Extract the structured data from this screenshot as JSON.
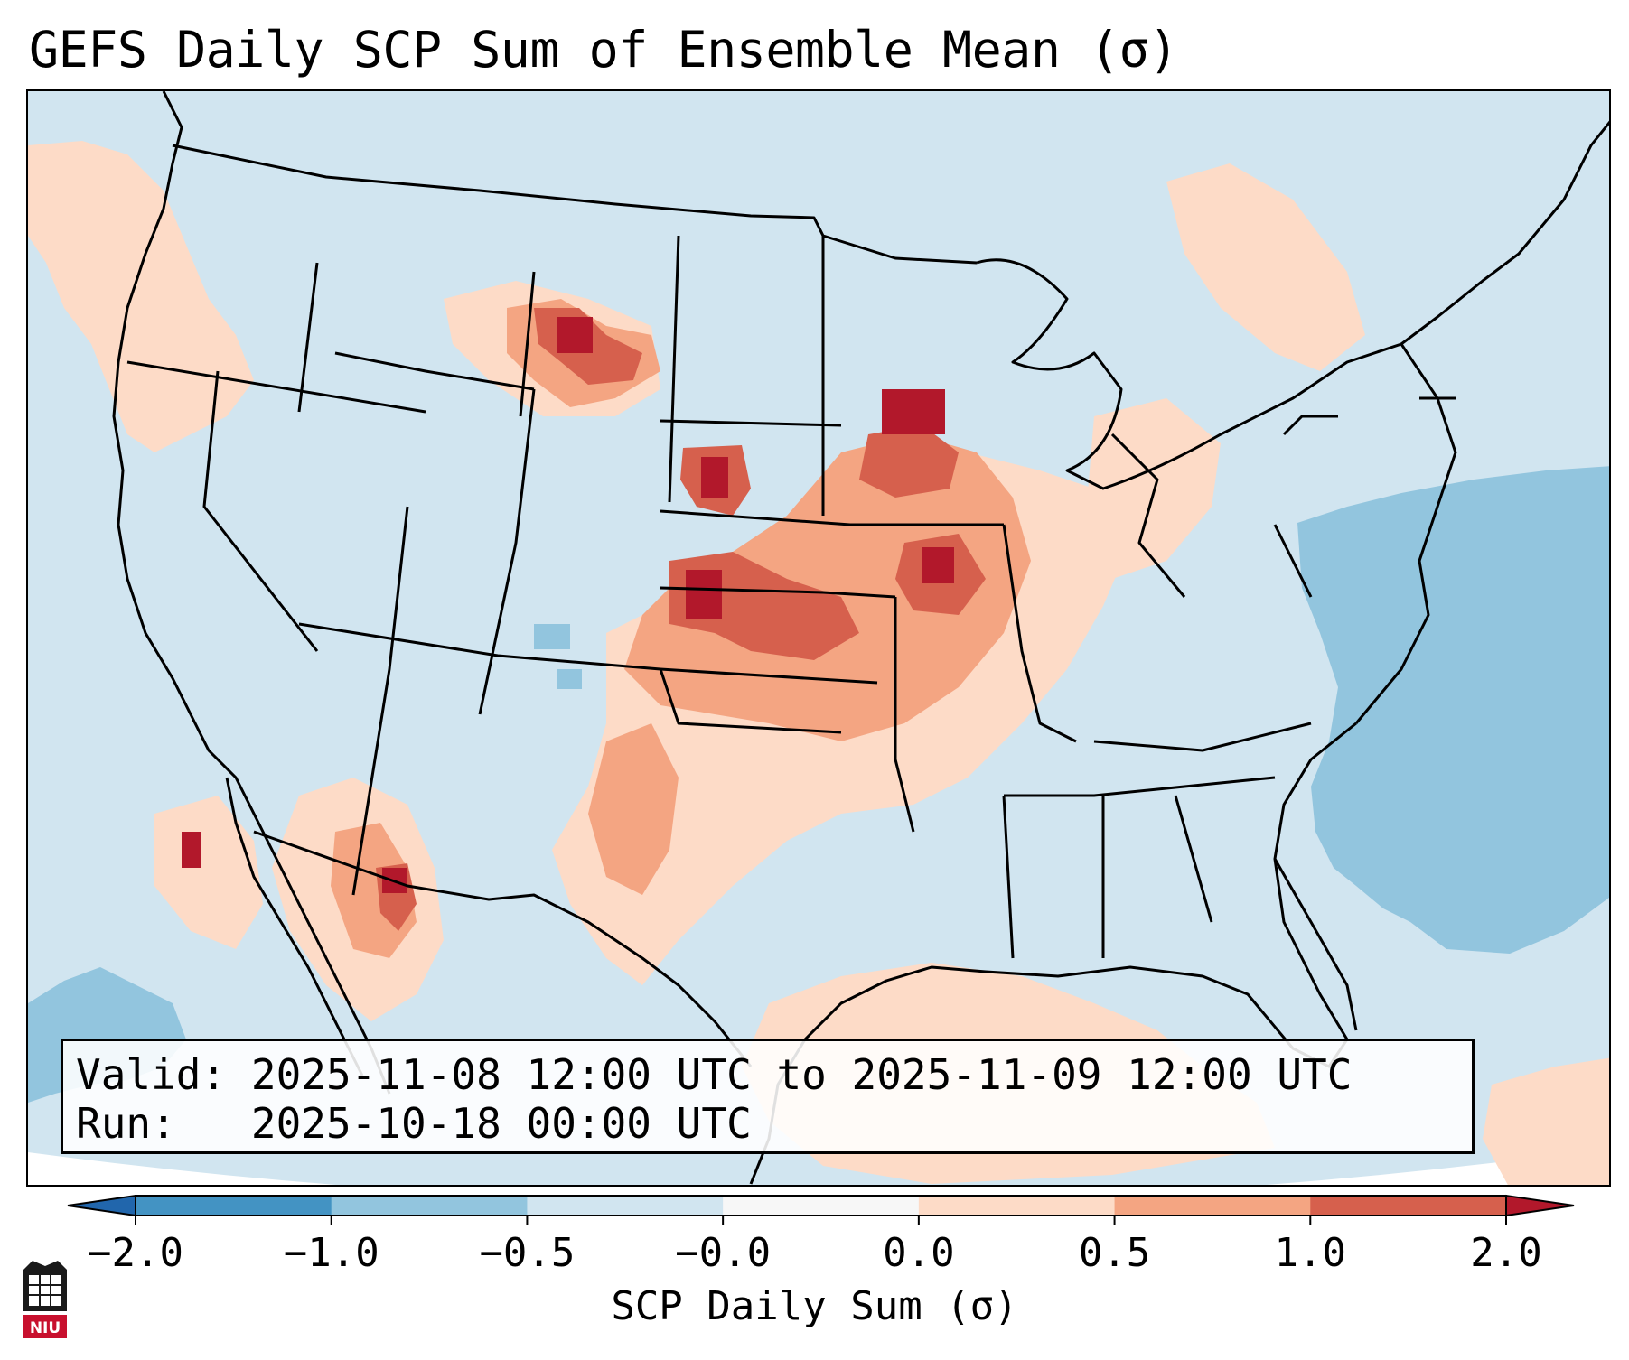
{
  "title": "GEFS Daily SCP Sum of Ensemble Mean (σ)",
  "info": {
    "valid_label": "Valid:",
    "valid_value": "2025-11-08 12:00 UTC to 2025-11-09 12:00 UTC",
    "run_label": "Run:",
    "run_value": "2025-10-18 00:00 UTC"
  },
  "colorbar": {
    "label": "SCP Daily Sum (σ)",
    "ticks": [
      "−2.0",
      "−1.0",
      "−0.5",
      "−0.0",
      "0.0",
      "0.5",
      "1.0",
      "2.0"
    ],
    "bins": [
      {
        "from": "−2.0",
        "to": "−1.0",
        "color": "#4393c3"
      },
      {
        "from": "−1.0",
        "to": "−0.5",
        "color": "#92c5de"
      },
      {
        "from": "−0.5",
        "to": "−0.0",
        "color": "#d1e5f0"
      },
      {
        "from": "−0.0",
        "to": "0.0",
        "color": "#f7f7f7"
      },
      {
        "from": "0.0",
        "to": "0.5",
        "color": "#fddbc7"
      },
      {
        "from": "0.5",
        "to": "1.0",
        "color": "#f4a582"
      },
      {
        "from": "1.0",
        "to": "2.0",
        "color": "#d6604d"
      }
    ],
    "under_color": "#2166ac",
    "over_color": "#b2182b"
  },
  "map": {
    "background_color": "#d1e5f0",
    "border_color": "#000000",
    "logo_text": "NIU",
    "regions": [
      {
        "name": "pacific-northwest",
        "level": "0.0 to 0.5"
      },
      {
        "name": "montana-plains",
        "level": "1.0 to 2.0"
      },
      {
        "name": "nebraska",
        "level": "1.0 to 2.0"
      },
      {
        "name": "kansas-oklahoma",
        "level": "1.0 to 2.0"
      },
      {
        "name": "iowa-minnesota",
        "level": "1.0 to 2.0"
      },
      {
        "name": "missouri",
        "level": "1.0 to 2.0"
      },
      {
        "name": "southern-plains-texas",
        "level": "0.5 to 1.0"
      },
      {
        "name": "arizona-sonora",
        "level": "0.5 to 1.0"
      },
      {
        "name": "gulf-of-mexico",
        "level": "0.0 to 0.5"
      },
      {
        "name": "western-atlantic",
        "level": "−1.0 to −0.5"
      },
      {
        "name": "eastern-pacific",
        "level": "−1.0 to −0.5"
      }
    ]
  }
}
